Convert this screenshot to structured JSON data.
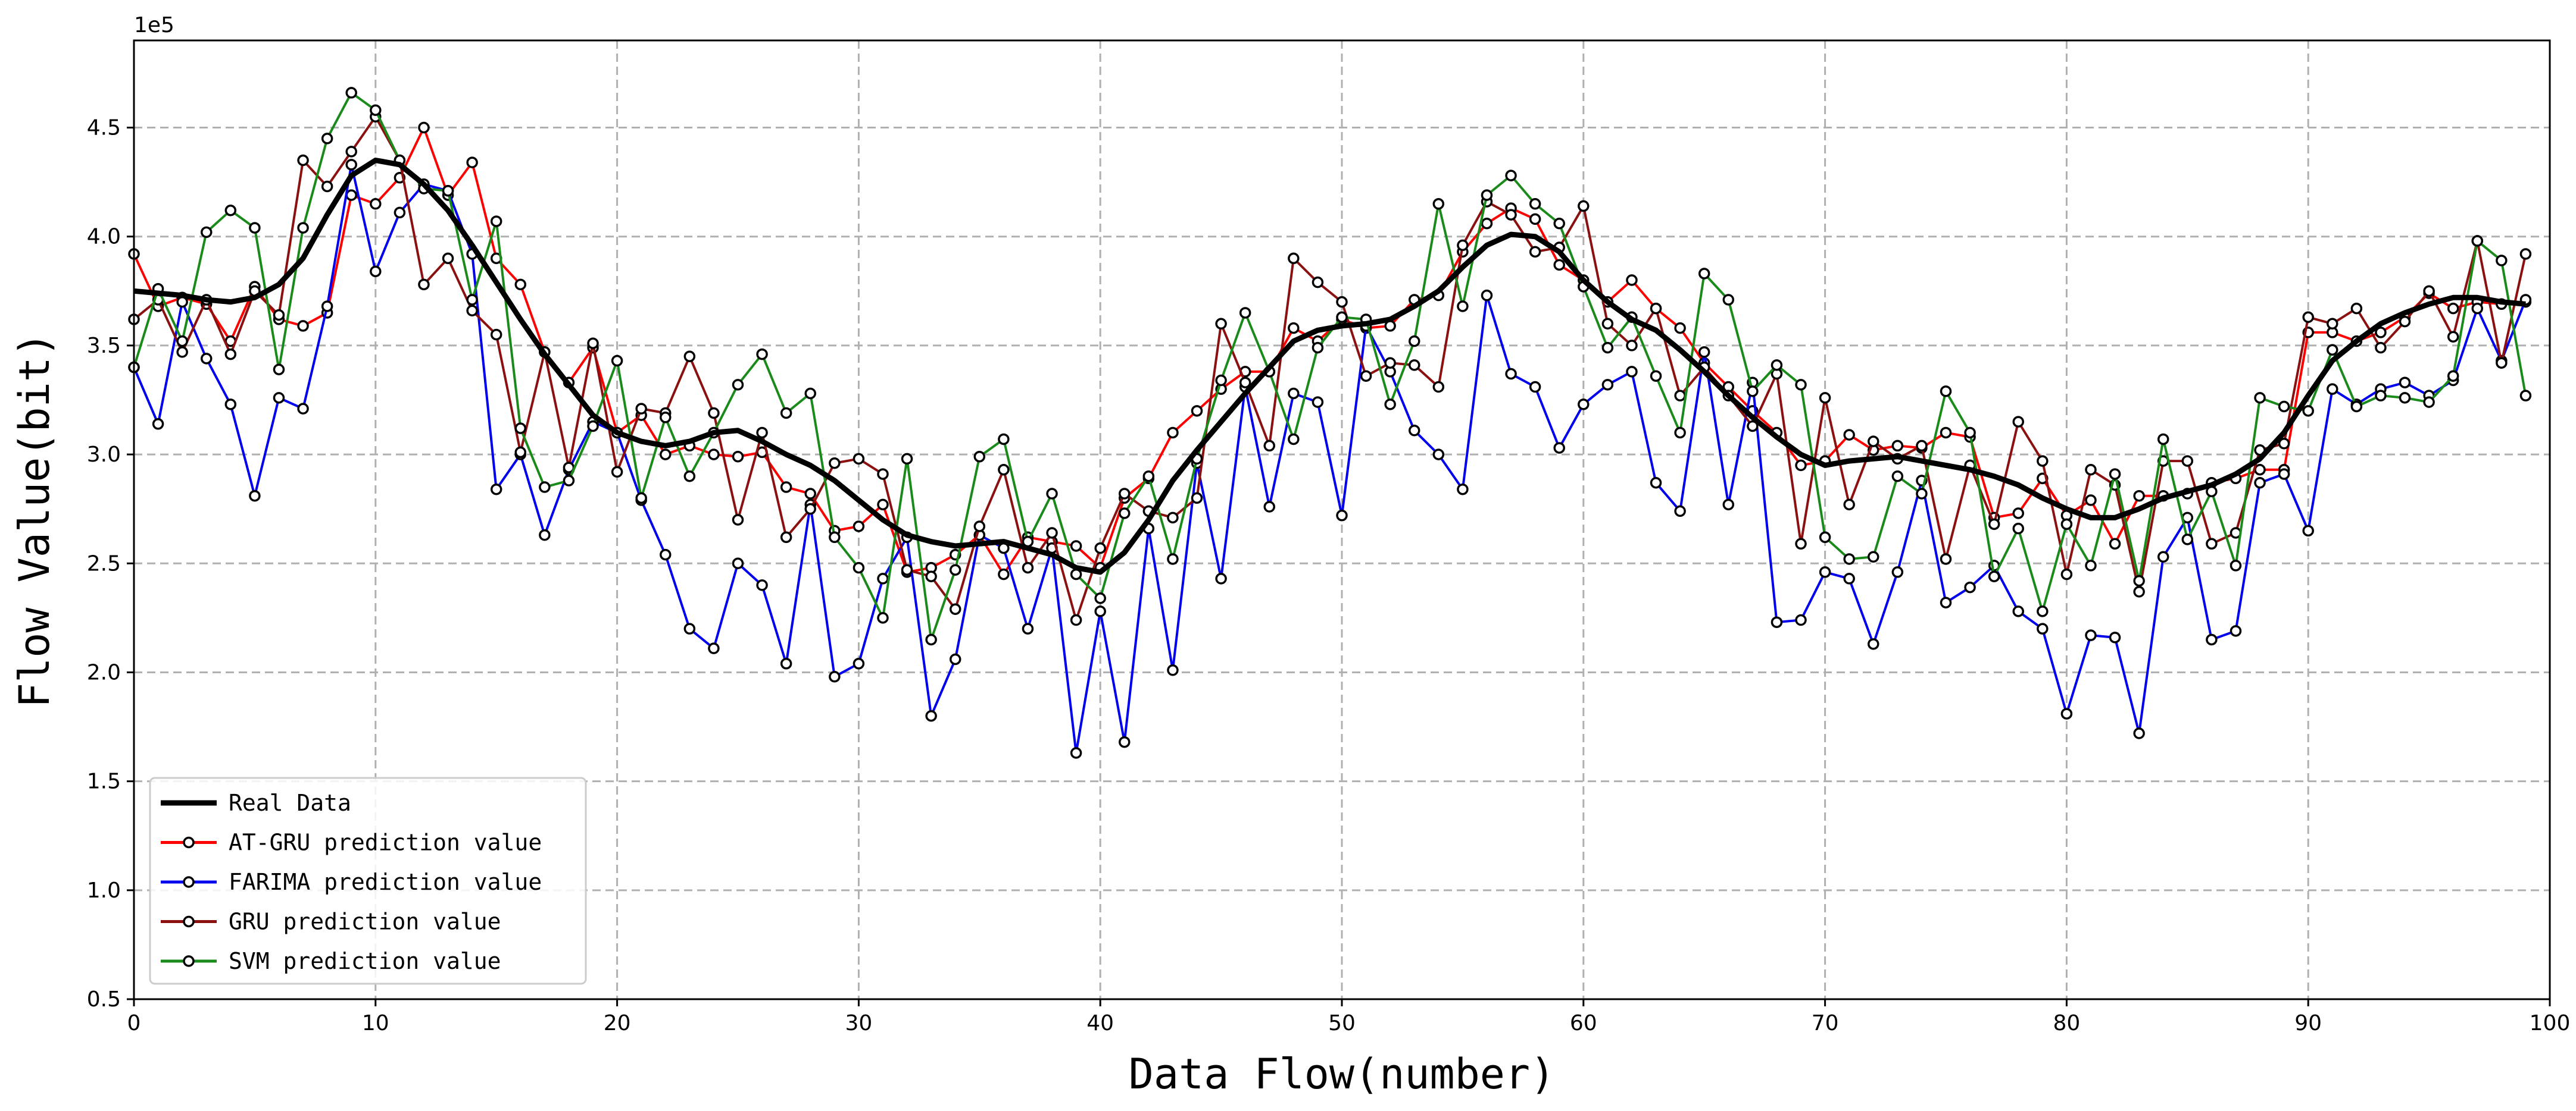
{
  "chart_data": {
    "type": "line",
    "xlabel": "Data Flow(number)",
    "ylabel": "Flow Value(bit)",
    "y_offset_label": "1e5",
    "xlim": [
      0,
      100
    ],
    "ylim": [
      0.5,
      4.9
    ],
    "x_ticks": [
      0,
      10,
      20,
      30,
      40,
      50,
      60,
      70,
      80,
      90,
      100
    ],
    "x_tick_labels": [
      "0",
      "10",
      "20",
      "30",
      "40",
      "50",
      "60",
      "70",
      "80",
      "90",
      "100"
    ],
    "y_ticks": [
      0.5,
      1.0,
      1.5,
      2.0,
      2.5,
      3.0,
      3.5,
      4.0,
      4.5
    ],
    "y_tick_labels": [
      "0.5",
      "1.0",
      "1.5",
      "2.0",
      "2.5",
      "3.0",
      "3.5",
      "4.0",
      "4.5"
    ],
    "grid": true,
    "legend_position": "lower-left",
    "series": [
      {
        "name": "Real Data",
        "color": "#000000",
        "markers": false,
        "values": [
          3.75,
          3.74,
          3.73,
          3.71,
          3.7,
          3.72,
          3.78,
          3.9,
          4.1,
          4.28,
          4.35,
          4.33,
          4.24,
          4.12,
          3.96,
          3.79,
          3.62,
          3.46,
          3.32,
          3.18,
          3.1,
          3.06,
          3.04,
          3.06,
          3.1,
          3.11,
          3.06,
          3.0,
          2.95,
          2.88,
          2.79,
          2.7,
          2.63,
          2.6,
          2.58,
          2.59,
          2.6,
          2.57,
          2.54,
          2.48,
          2.46,
          2.55,
          2.7,
          2.88,
          3.02,
          3.15,
          3.28,
          3.4,
          3.52,
          3.57,
          3.59,
          3.6,
          3.62,
          3.68,
          3.75,
          3.86,
          3.96,
          4.01,
          4.0,
          3.93,
          3.8,
          3.7,
          3.62,
          3.57,
          3.48,
          3.38,
          3.27,
          3.17,
          3.08,
          3.0,
          2.95,
          2.97,
          2.98,
          2.99,
          2.97,
          2.95,
          2.93,
          2.9,
          2.86,
          2.8,
          2.75,
          2.71,
          2.71,
          2.75,
          2.8,
          2.83,
          2.86,
          2.91,
          2.98,
          3.1,
          3.27,
          3.43,
          3.52,
          3.6,
          3.65,
          3.69,
          3.72,
          3.72,
          3.7,
          3.69
        ]
      },
      {
        "name": "AT-GRU prediction value",
        "color": "#ff0000",
        "markers": true,
        "values": [
          3.92,
          3.68,
          3.72,
          3.69,
          3.52,
          3.77,
          3.62,
          3.59,
          3.65,
          4.19,
          4.15,
          4.27,
          4.5,
          4.19,
          4.34,
          3.9,
          3.78,
          3.47,
          3.33,
          3.49,
          3.1,
          3.18,
          3.0,
          3.04,
          3.0,
          2.99,
          3.01,
          2.85,
          2.82,
          2.65,
          2.67,
          2.77,
          2.46,
          2.48,
          2.54,
          2.63,
          2.45,
          2.62,
          2.6,
          2.58,
          2.48,
          2.8,
          2.89,
          3.1,
          3.2,
          3.3,
          3.38,
          3.38,
          3.58,
          3.52,
          3.62,
          3.58,
          3.59,
          3.71,
          3.73,
          3.93,
          4.06,
          4.13,
          4.08,
          3.87,
          3.8,
          3.7,
          3.8,
          3.67,
          3.58,
          3.42,
          3.31,
          3.2,
          3.1,
          2.95,
          2.97,
          3.09,
          3.02,
          3.04,
          3.03,
          3.1,
          3.08,
          2.71,
          2.73,
          2.89,
          2.72,
          2.79,
          2.59,
          2.81,
          2.81,
          2.82,
          2.87,
          2.89,
          2.93,
          2.93,
          3.56,
          3.56,
          3.52,
          3.56,
          3.63,
          3.74,
          3.67,
          3.7,
          3.69,
          3.7
        ]
      },
      {
        "name": "FARIMA prediction value",
        "color": "#0000ee",
        "markers": true,
        "values": [
          3.4,
          3.14,
          3.7,
          3.44,
          3.23,
          2.81,
          3.26,
          3.21,
          3.68,
          4.33,
          3.84,
          4.11,
          4.24,
          4.21,
          3.92,
          2.84,
          3.0,
          2.63,
          2.93,
          3.15,
          3.1,
          2.79,
          2.54,
          2.2,
          2.11,
          2.5,
          2.4,
          2.04,
          2.77,
          1.98,
          2.04,
          2.43,
          2.62,
          1.8,
          2.06,
          2.63,
          2.57,
          2.2,
          2.57,
          1.63,
          2.28,
          1.68,
          2.66,
          2.01,
          2.96,
          2.43,
          3.31,
          2.76,
          3.28,
          3.24,
          2.72,
          3.59,
          3.38,
          3.11,
          3.0,
          2.84,
          3.73,
          3.37,
          3.31,
          3.03,
          3.23,
          3.32,
          3.38,
          2.87,
          2.74,
          3.47,
          2.77,
          3.33,
          2.23,
          2.24,
          2.46,
          2.43,
          2.13,
          2.46,
          2.88,
          2.32,
          2.39,
          2.49,
          2.28,
          2.2,
          1.81,
          2.17,
          2.16,
          1.72,
          2.53,
          2.71,
          2.15,
          2.19,
          2.87,
          2.91,
          2.65,
          3.3,
          3.23,
          3.3,
          3.33,
          3.27,
          3.34,
          3.67,
          3.43,
          3.71
        ]
      },
      {
        "name": "GRU prediction value",
        "color": "#8b1010",
        "markers": true,
        "values": [
          3.62,
          3.71,
          3.47,
          3.71,
          3.46,
          3.75,
          3.64,
          4.35,
          4.23,
          4.39,
          4.55,
          4.35,
          3.78,
          3.9,
          3.66,
          3.55,
          3.01,
          3.47,
          2.94,
          3.51,
          2.92,
          3.21,
          3.19,
          3.45,
          3.19,
          2.7,
          3.1,
          2.62,
          2.75,
          2.96,
          2.98,
          2.91,
          2.47,
          2.44,
          2.29,
          2.67,
          2.93,
          2.48,
          2.64,
          2.24,
          2.57,
          2.82,
          2.74,
          2.71,
          2.8,
          3.6,
          3.33,
          3.04,
          3.9,
          3.79,
          3.7,
          3.36,
          3.42,
          3.41,
          3.31,
          3.96,
          4.16,
          4.1,
          3.93,
          3.95,
          4.14,
          3.6,
          3.5,
          3.67,
          3.27,
          3.4,
          3.27,
          3.13,
          3.37,
          2.59,
          3.26,
          2.77,
          3.06,
          2.98,
          3.04,
          2.52,
          2.95,
          2.68,
          3.15,
          2.97,
          2.45,
          2.93,
          2.86,
          2.37,
          2.97,
          2.97,
          2.59,
          2.64,
          3.02,
          3.05,
          3.63,
          3.6,
          3.67,
          3.49,
          3.61,
          3.75,
          3.54,
          3.98,
          3.42,
          3.92
        ]
      },
      {
        "name": "SVM prediction value",
        "color": "#1a8a1a",
        "markers": true,
        "values": [
          3.4,
          3.76,
          3.52,
          4.02,
          4.12,
          4.04,
          3.39,
          4.04,
          4.45,
          4.66,
          4.58,
          4.35,
          4.22,
          4.21,
          3.71,
          4.07,
          3.12,
          2.85,
          2.88,
          3.13,
          3.43,
          2.8,
          3.17,
          2.9,
          3.1,
          3.32,
          3.46,
          3.19,
          3.28,
          2.62,
          2.48,
          2.25,
          2.98,
          2.15,
          2.47,
          2.99,
          3.07,
          2.6,
          2.82,
          2.45,
          2.34,
          2.73,
          2.9,
          2.52,
          2.98,
          3.34,
          3.65,
          3.38,
          3.07,
          3.49,
          3.63,
          3.62,
          3.23,
          3.52,
          4.15,
          3.68,
          4.19,
          4.28,
          4.15,
          4.06,
          3.77,
          3.49,
          3.63,
          3.36,
          3.1,
          3.83,
          3.71,
          3.29,
          3.41,
          3.32,
          2.62,
          2.52,
          2.53,
          2.9,
          2.82,
          3.29,
          3.1,
          2.44,
          2.66,
          2.28,
          2.68,
          2.49,
          2.91,
          2.42,
          3.07,
          2.61,
          2.83,
          2.49,
          3.26,
          3.22,
          3.2,
          3.48,
          3.22,
          3.27,
          3.26,
          3.24,
          3.36,
          3.98,
          3.89,
          3.27
        ]
      }
    ]
  }
}
